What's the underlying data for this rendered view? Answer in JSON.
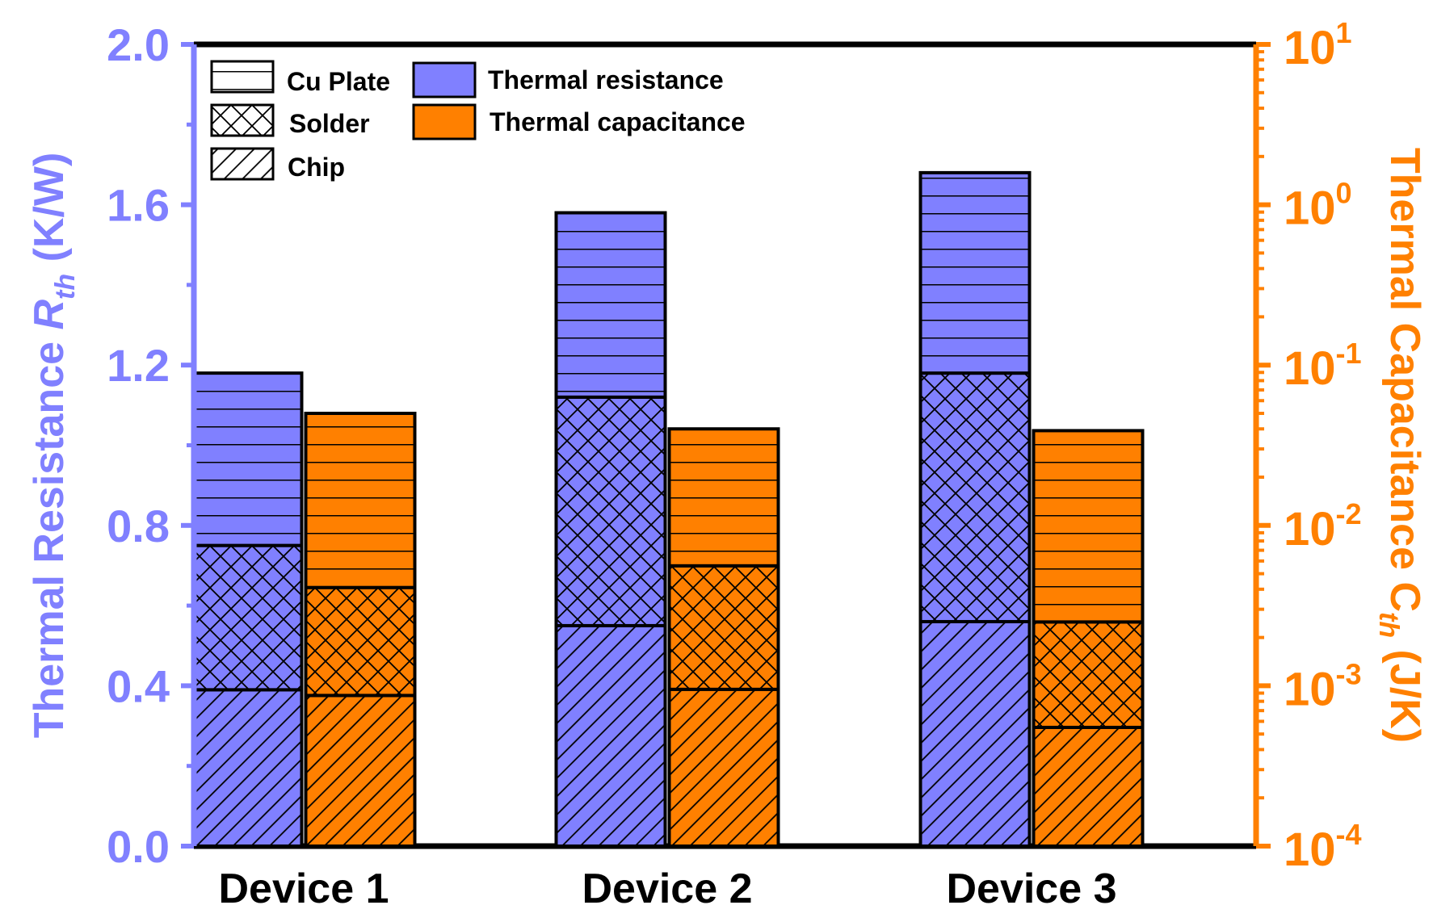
{
  "chart_data": {
    "type": "bar",
    "subtype": "stacked, dual-axis (linear left, log right)",
    "categories": [
      "Device 1",
      "Device 2",
      "Device 3"
    ],
    "left_axis": {
      "label_main": "Thermal Resistance ",
      "label_symbol": "R",
      "label_sub": "th",
      "label_unit": " (K/W)",
      "range": [
        0,
        2.0
      ],
      "ticks": [
        "0.0",
        "0.4",
        "0.8",
        "1.2",
        "1.6",
        "2.0"
      ],
      "tick_values": [
        0,
        0.4,
        0.8,
        1.2,
        1.6,
        2.0
      ],
      "color": "#8080ff"
    },
    "right_axis": {
      "label_main": "Thermal Capacitance C",
      "label_sub": "th",
      "label_unit": " (J/K)",
      "scale": "log",
      "range_exponent": [
        -4,
        1
      ],
      "tick_base": "10",
      "tick_exponents": [
        "-4",
        "-3",
        "-2",
        "-1",
        "0",
        "1"
      ],
      "color": "#ff8000"
    },
    "legend": {
      "placement": "top-left",
      "patterns": [
        "Cu Plate",
        "Solder",
        "Chip"
      ],
      "fills": [
        "Thermal resistance",
        "Thermal capacitance"
      ]
    },
    "layers": [
      "Chip",
      "Solder",
      "Cu Plate"
    ],
    "series": [
      {
        "name": "Thermal resistance",
        "axis": "left",
        "color": "#8080ff",
        "cumulative_tops": [
          [
            0.39,
            0.75,
            1.18
          ],
          [
            0.55,
            1.12,
            1.58
          ],
          [
            0.56,
            1.18,
            1.68
          ]
        ]
      },
      {
        "name": "Thermal capacitance",
        "axis": "right",
        "color": "#ff8000",
        "cumulative_tops": [
          [
            0.00087,
            0.0041,
            0.05
          ],
          [
            0.00095,
            0.0056,
            0.04
          ],
          [
            0.00055,
            0.0025,
            0.039
          ]
        ]
      }
    ]
  }
}
